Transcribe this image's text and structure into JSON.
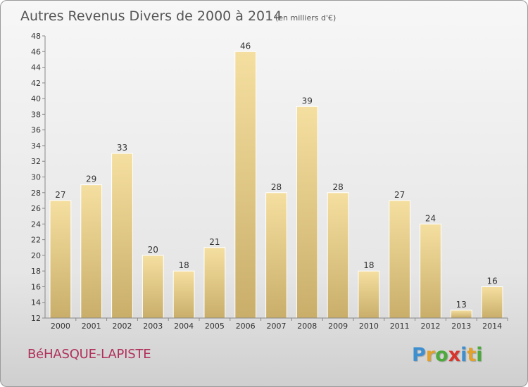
{
  "chart_data": {
    "type": "bar",
    "title": "Autres Revenus Divers de 2000 à 2014",
    "subtitle": "(en milliers d'€)",
    "categories": [
      "2000",
      "2001",
      "2002",
      "2003",
      "2004",
      "2005",
      "2006",
      "2007",
      "2008",
      "2009",
      "2010",
      "2011",
      "2012",
      "2013",
      "2014"
    ],
    "values": [
      27,
      29,
      33,
      20,
      18,
      21,
      46,
      28,
      39,
      28,
      18,
      27,
      24,
      13,
      16
    ],
    "ylim": [
      12,
      48
    ],
    "yticks": [
      12,
      14,
      16,
      18,
      20,
      22,
      24,
      26,
      28,
      30,
      32,
      34,
      36,
      38,
      40,
      42,
      44,
      46,
      48
    ],
    "xlabel": "",
    "ylabel": "",
    "grid": false,
    "bar_color_light": "#f5dfa0",
    "bar_color_dark": "#c9ae6a"
  },
  "footer": {
    "commune": "BéHASQUE-LAPISTE",
    "logo_letters": [
      {
        "ch": "P",
        "color": "#3d8fd0"
      },
      {
        "ch": "r",
        "color": "#e2a12a"
      },
      {
        "ch": "o",
        "color": "#4caa3c"
      },
      {
        "ch": "x",
        "color": "#d8342c"
      },
      {
        "ch": "i",
        "color": "#3d8fd0"
      },
      {
        "ch": "t",
        "color": "#e2a12a"
      },
      {
        "ch": "i",
        "color": "#4caa3c"
      }
    ]
  }
}
